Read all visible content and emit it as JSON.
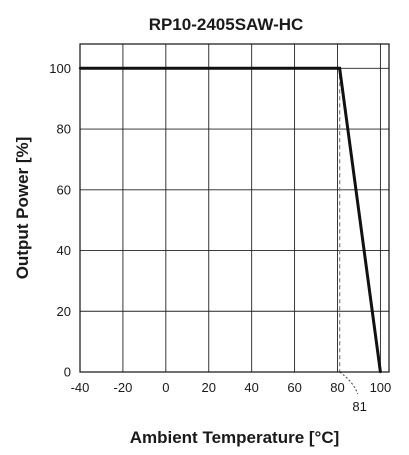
{
  "chart_data": {
    "type": "line",
    "title": "RP10-2405SAW-HC",
    "xlabel": "Ambient Temperature [°C]",
    "ylabel": "Output Power [%]",
    "xlim": [
      -40,
      104
    ],
    "ylim": [
      0,
      108
    ],
    "x_ticks": [
      -40,
      -20,
      0,
      20,
      40,
      60,
      80,
      100
    ],
    "y_ticks": [
      0,
      20,
      40,
      60,
      80,
      100
    ],
    "grid": true,
    "series": [
      {
        "x": [
          -40,
          81,
          100
        ],
        "y": [
          100,
          100,
          0
        ]
      }
    ],
    "reference_x": 81,
    "annotation": "81"
  }
}
